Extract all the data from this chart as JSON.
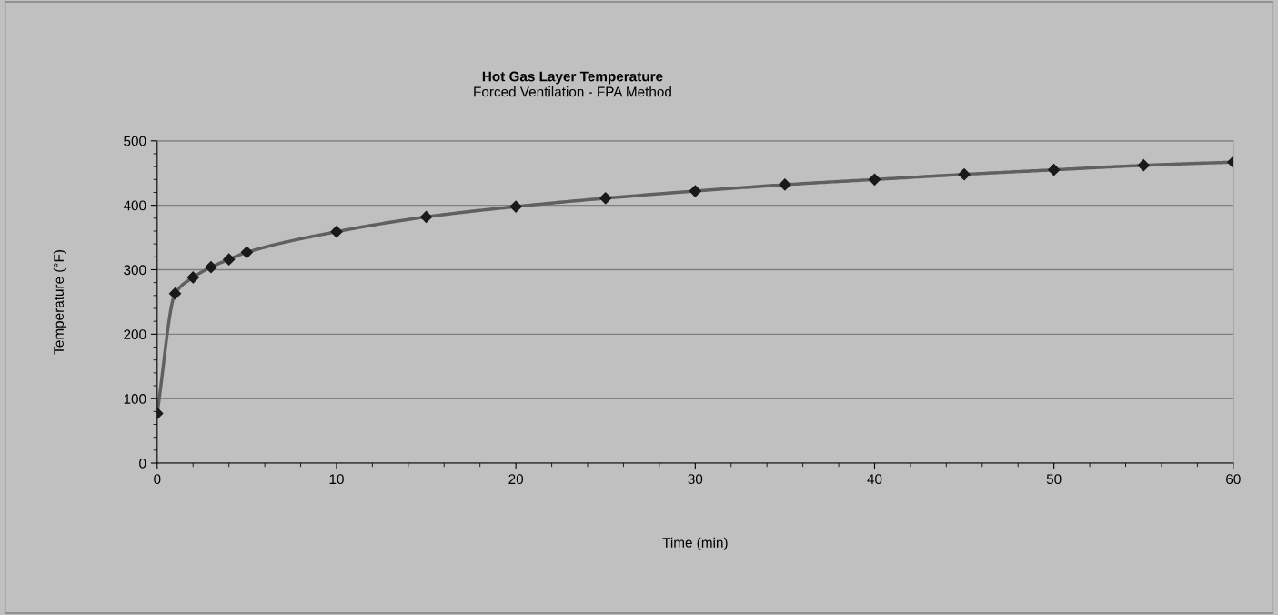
{
  "chart_data": {
    "type": "line",
    "title": "Hot Gas Layer Temperature",
    "subtitle": "Forced Ventilation - FPA Method",
    "xlabel": "Time (min)",
    "ylabel": "Temperature (°F)",
    "x": [
      0,
      1,
      2,
      3,
      4,
      5,
      10,
      15,
      20,
      25,
      30,
      35,
      40,
      45,
      50,
      55,
      60
    ],
    "series": [
      {
        "color": "#606060",
        "values": [
          77,
          263,
          288,
          304,
          316,
          327,
          359,
          382,
          398,
          411,
          422,
          432,
          440,
          448,
          455,
          462,
          467
        ]
      }
    ],
    "xlim": [
      0,
      60
    ],
    "xticks": [
      0,
      10,
      20,
      30,
      40,
      50,
      60
    ],
    "ylim": [
      0,
      500
    ],
    "yticks": [
      0,
      100,
      200,
      300,
      400,
      500
    ],
    "grid": "y",
    "marker": "diamond",
    "line_style": "solid",
    "legend": false
  }
}
